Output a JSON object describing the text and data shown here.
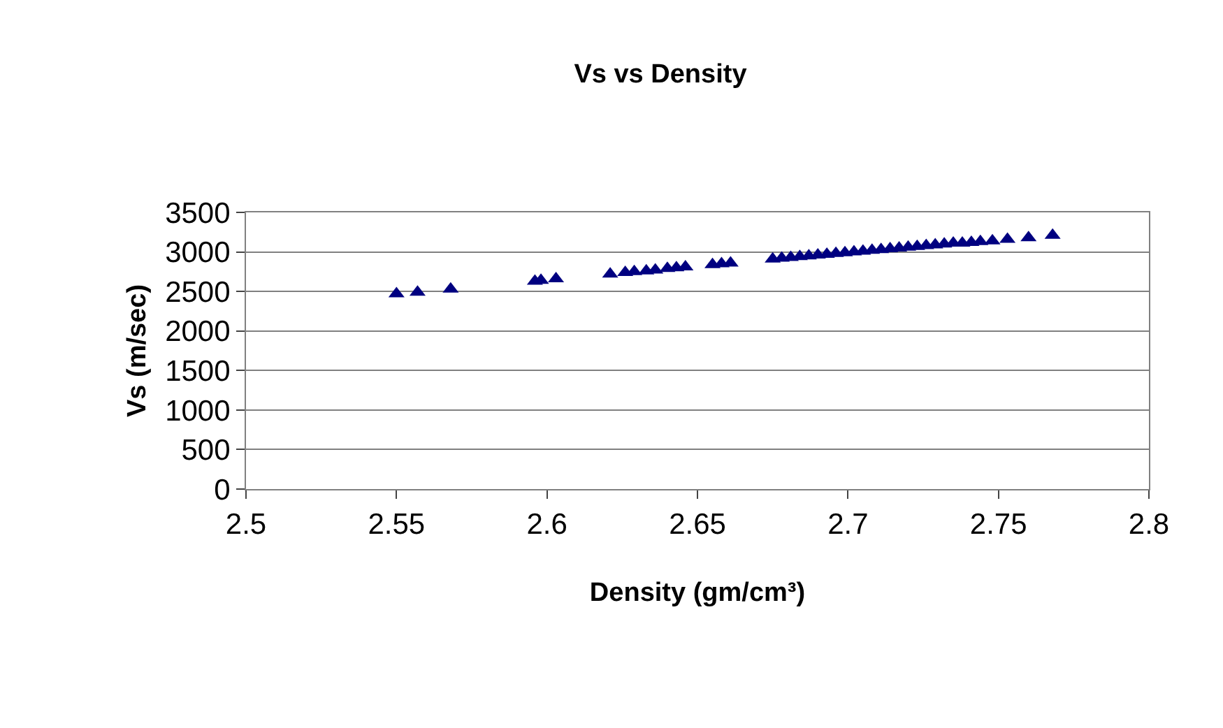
{
  "chart_data": {
    "type": "scatter",
    "title": "Vs vs Density",
    "xlabel": "Density (gm/cm³)",
    "ylabel": "Vs (m/sec)",
    "x": [
      2.55,
      2.557,
      2.568,
      2.596,
      2.598,
      2.603,
      2.621,
      2.626,
      2.629,
      2.633,
      2.636,
      2.64,
      2.643,
      2.646,
      2.655,
      2.658,
      2.661,
      2.675,
      2.678,
      2.681,
      2.684,
      2.687,
      2.69,
      2.693,
      2.696,
      2.699,
      2.702,
      2.705,
      2.708,
      2.711,
      2.714,
      2.717,
      2.72,
      2.723,
      2.726,
      2.729,
      2.732,
      2.735,
      2.738,
      2.741,
      2.744,
      2.748,
      2.753,
      2.76,
      2.768
    ],
    "series": [
      {
        "color": "#000080",
        "values": [
          2470,
          2490,
          2530,
          2630,
          2640,
          2660,
          2720,
          2740,
          2750,
          2760,
          2770,
          2790,
          2800,
          2810,
          2840,
          2850,
          2860,
          2910,
          2920,
          2930,
          2940,
          2950,
          2960,
          2970,
          2980,
          2990,
          3000,
          3010,
          3020,
          3030,
          3040,
          3050,
          3060,
          3070,
          3080,
          3090,
          3100,
          3110,
          3110,
          3120,
          3130,
          3140,
          3160,
          3180,
          3210
        ]
      }
    ],
    "xlim": [
      2.5,
      2.8
    ],
    "xticks": [
      2.5,
      2.55,
      2.6,
      2.65,
      2.7,
      2.75,
      2.8
    ],
    "ylim": [
      0,
      3500
    ],
    "yticks": [
      0,
      500,
      1000,
      1500,
      2000,
      2500,
      3000,
      3500
    ],
    "grid": "y",
    "marker": "triangle"
  }
}
